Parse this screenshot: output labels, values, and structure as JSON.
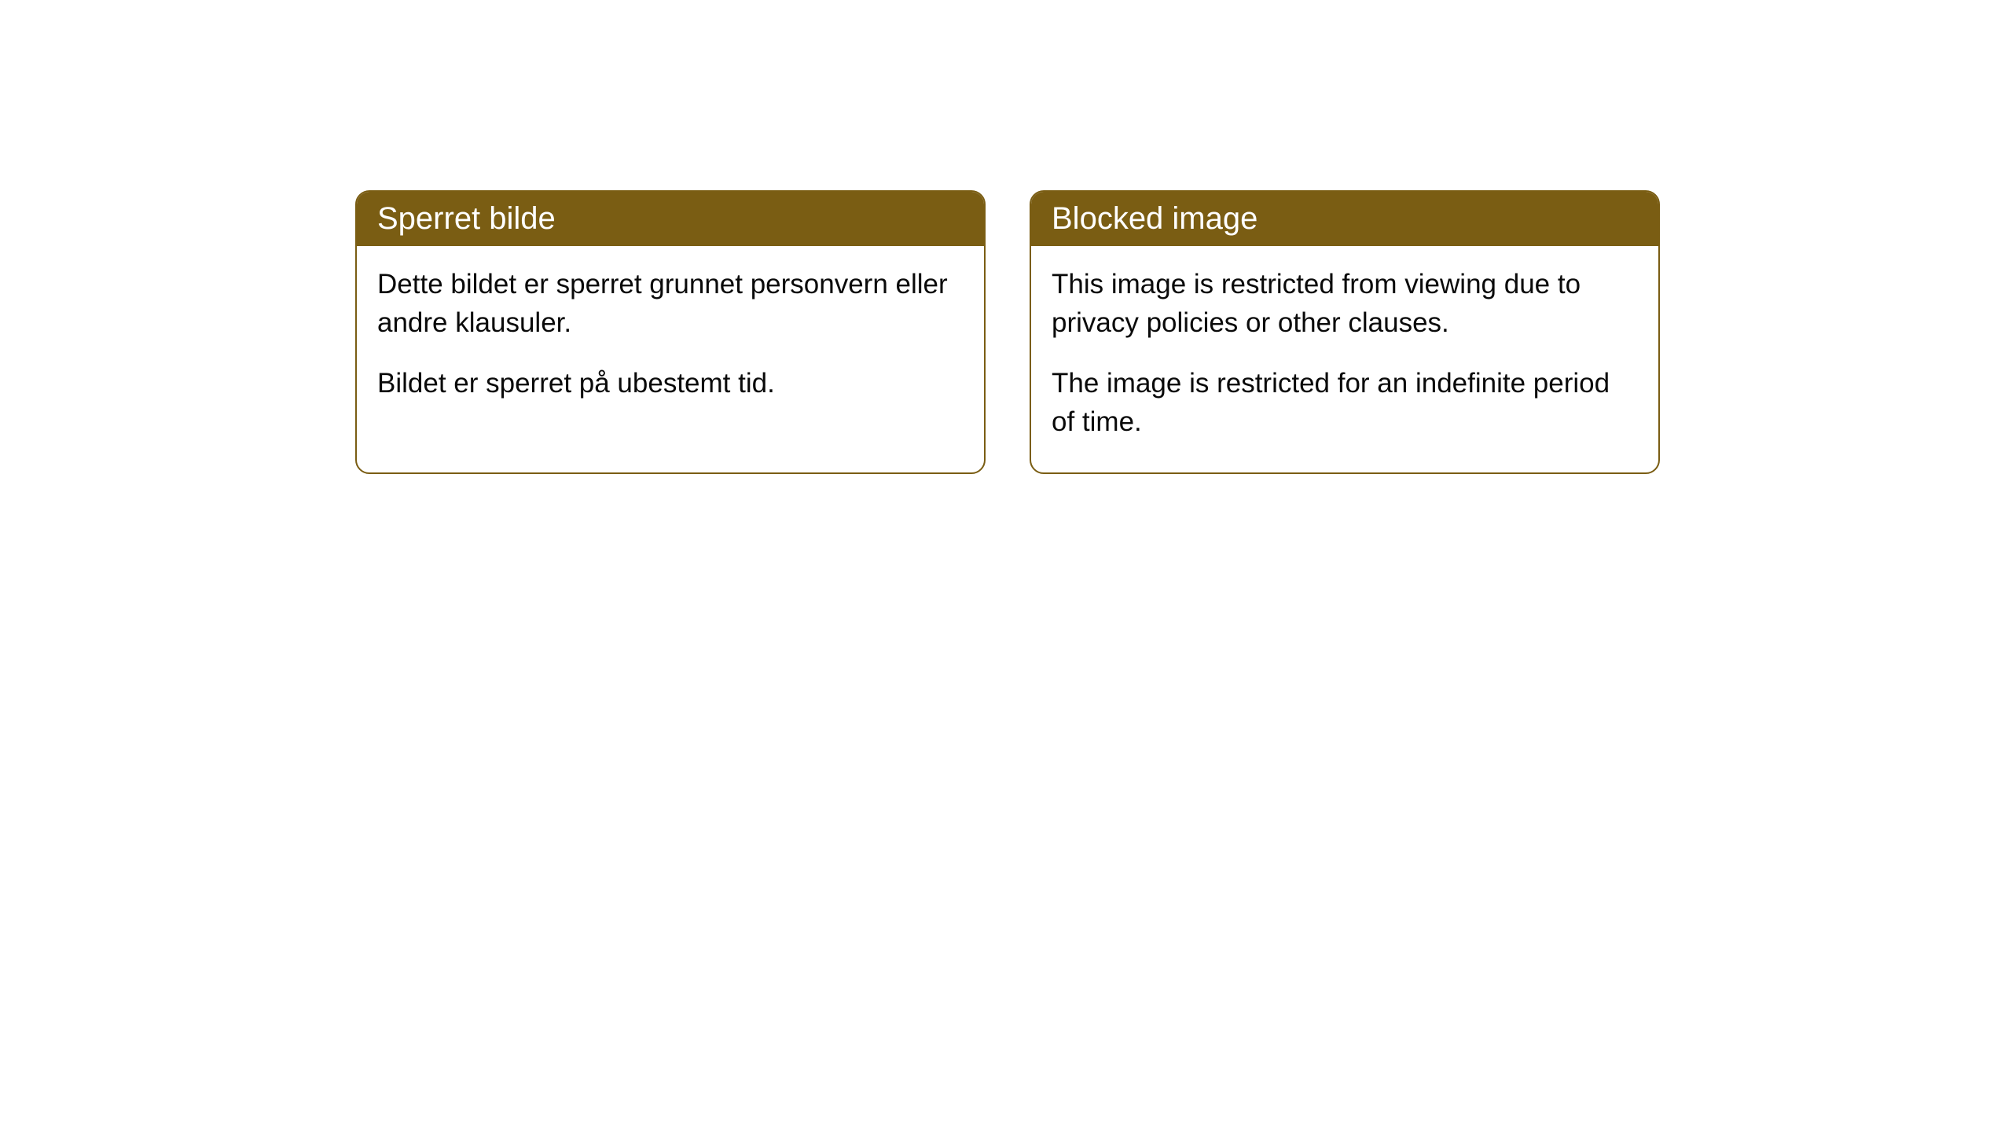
{
  "cards": [
    {
      "title": "Sperret bilde",
      "paragraph1": "Dette bildet er sperret grunnet personvern eller andre klausuler.",
      "paragraph2": "Bildet er sperret på ubestemt tid."
    },
    {
      "title": "Blocked image",
      "paragraph1": "This image is restricted from viewing due to privacy policies or other clauses.",
      "paragraph2": "The image is restricted for an indefinite period of time."
    }
  ],
  "style": {
    "header_background": "#7a5d13",
    "header_text_color": "#ffffff",
    "body_text_color": "#0a0a0a",
    "border_color": "#7a5d13",
    "background_color": "#ffffff",
    "border_radius": 18,
    "title_fontsize": 40,
    "body_fontsize": 35
  }
}
